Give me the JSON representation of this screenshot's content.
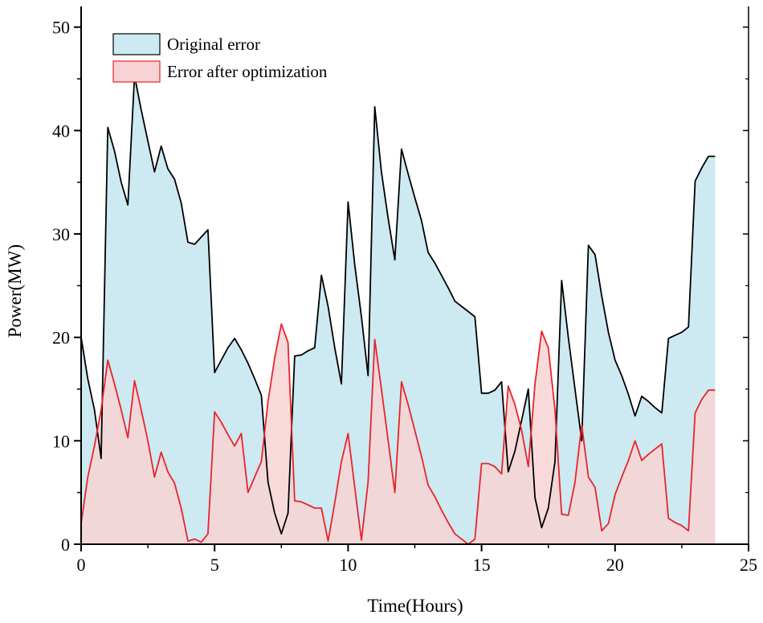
{
  "chart_data": {
    "type": "area",
    "title": "",
    "xlabel": "Time(Hours)",
    "ylabel": "Power(MW)",
    "xlim": [
      0,
      25
    ],
    "ylim": [
      0,
      52
    ],
    "xticks": [
      "0",
      "5",
      "10",
      "15",
      "20",
      "25"
    ],
    "yticks": [
      "0",
      "10",
      "20",
      "30",
      "40",
      "50"
    ],
    "legend_position": "top-left",
    "series": [
      {
        "name": "Original error",
        "color": "#000000",
        "fill": "#cde9f1",
        "x": [
          0,
          0.25,
          0.5,
          0.75,
          1,
          1.25,
          1.5,
          1.75,
          2,
          2.25,
          2.5,
          2.75,
          3,
          3.25,
          3.5,
          3.75,
          4,
          4.25,
          4.5,
          4.75,
          5,
          5.25,
          5.5,
          5.75,
          6,
          6.25,
          6.5,
          6.75,
          7,
          7.25,
          7.5,
          7.75,
          8,
          8.25,
          8.5,
          8.75,
          9,
          9.25,
          9.5,
          9.75,
          10,
          10.25,
          10.5,
          10.75,
          11,
          11.25,
          11.5,
          11.75,
          12,
          12.25,
          12.5,
          12.75,
          13,
          13.25,
          13.5,
          13.75,
          14,
          14.25,
          14.5,
          14.75,
          15,
          15.25,
          15.5,
          15.75,
          16,
          16.25,
          16.5,
          16.75,
          17,
          17.25,
          17.5,
          17.75,
          18,
          18.25,
          18.5,
          18.75,
          19,
          19.25,
          19.5,
          19.75,
          20,
          20.25,
          20.5,
          20.75,
          21,
          21.25,
          21.5,
          21.75,
          22,
          22.25,
          22.5,
          22.75,
          23,
          23.25,
          23.5,
          23.75
        ],
        "values": [
          20,
          16,
          13,
          8.3,
          40.3,
          38,
          35,
          32.8,
          45.3,
          42,
          39,
          36,
          38.5,
          36.3,
          35.3,
          33,
          29.2,
          29,
          29.7,
          30.4,
          16.6,
          17.8,
          19,
          19.9,
          18.8,
          17.5,
          16,
          14.4,
          6,
          3,
          1,
          3,
          18.2,
          18.3,
          18.7,
          19,
          26,
          23,
          19,
          15.5,
          33.1,
          27,
          22,
          16.3,
          42.3,
          36,
          31.5,
          27.5,
          38.2,
          35.8,
          33.5,
          31.3,
          28.2,
          27.2,
          26,
          24.8,
          23.5,
          23,
          22.5,
          22,
          14.6,
          14.6,
          14.9,
          15.7,
          7,
          9,
          12,
          15,
          4.5,
          1.6,
          3.5,
          8,
          25.5,
          20,
          15,
          10,
          28.9,
          28,
          24,
          20.5,
          17.8,
          16.3,
          14.5,
          12.4,
          14.3,
          13.8,
          13.2,
          12.7,
          19.9,
          20.2,
          20.5,
          21,
          35.1,
          36.4,
          37.5,
          37.5
        ]
      },
      {
        "name": "Error after optimization",
        "color": "#e8242a",
        "fill": "#f8d3d5",
        "x": [
          0,
          0.25,
          0.5,
          0.75,
          1,
          1.25,
          1.5,
          1.75,
          2,
          2.25,
          2.5,
          2.75,
          3,
          3.25,
          3.5,
          3.75,
          4,
          4.25,
          4.5,
          4.75,
          5,
          5.25,
          5.5,
          5.75,
          6,
          6.25,
          6.5,
          6.75,
          7,
          7.25,
          7.5,
          7.75,
          8,
          8.25,
          8.5,
          8.75,
          9,
          9.25,
          9.5,
          9.75,
          10,
          10.25,
          10.5,
          10.75,
          11,
          11.25,
          11.5,
          11.75,
          12,
          12.25,
          12.5,
          12.75,
          13,
          13.25,
          13.5,
          13.75,
          14,
          14.25,
          14.5,
          14.75,
          15,
          15.25,
          15.5,
          15.75,
          16,
          16.25,
          16.5,
          16.75,
          17,
          17.25,
          17.5,
          17.75,
          18,
          18.25,
          18.5,
          18.75,
          19,
          19.25,
          19.5,
          19.75,
          20,
          20.25,
          20.5,
          20.75,
          21,
          21.25,
          21.5,
          21.75,
          22,
          22.25,
          22.5,
          22.75,
          23,
          23.25,
          23.5,
          23.75
        ],
        "values": [
          2,
          6.5,
          9.5,
          13,
          17.8,
          15.5,
          13,
          10.3,
          15.8,
          13,
          10,
          6.5,
          8.9,
          7,
          5.9,
          3.5,
          0.3,
          0.5,
          0.2,
          1,
          12.8,
          11.8,
          10.6,
          9.5,
          10.7,
          5,
          6.5,
          8,
          13.8,
          18,
          21.3,
          19.5,
          4.2,
          4.1,
          3.8,
          3.5,
          3.5,
          0.3,
          4,
          8,
          10.7,
          5.5,
          0.4,
          6,
          19.8,
          15,
          10,
          5,
          15.7,
          13.5,
          11,
          8.5,
          5.7,
          4.6,
          3.3,
          2.1,
          1,
          0.5,
          0,
          0.5,
          7.8,
          7.8,
          7.5,
          6.8,
          15.3,
          13.5,
          11,
          7.5,
          15.5,
          20.6,
          19,
          13,
          2.9,
          2.8,
          6,
          11.5,
          6.5,
          5.5,
          1.3,
          2,
          4.8,
          6.5,
          8.1,
          10,
          8.1,
          8.7,
          9.2,
          9.7,
          2.5,
          2.1,
          1.8,
          1.3,
          12.7,
          14,
          14.9,
          14.9
        ]
      }
    ]
  }
}
